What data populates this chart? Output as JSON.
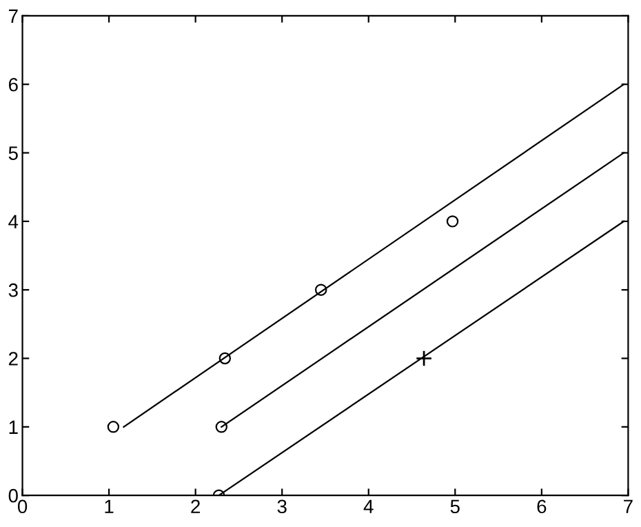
{
  "chart_data": {
    "type": "line",
    "xlim": [
      0,
      7
    ],
    "ylim": [
      0,
      7
    ],
    "xticks": [
      0,
      1,
      2,
      3,
      4,
      5,
      6,
      7
    ],
    "yticks": [
      0,
      1,
      2,
      3,
      4,
      5,
      6,
      7
    ],
    "grid": false,
    "legend": false,
    "series": [
      {
        "color": "#000000",
        "marker": "none",
        "line_style": "solid",
        "x": [
          1.17,
          6.95
        ],
        "values": [
          1,
          6
        ]
      },
      {
        "color": "#000000",
        "marker": "none",
        "line_style": "solid",
        "x": [
          2.3,
          6.95
        ],
        "values": [
          1,
          5
        ]
      },
      {
        "color": "#000000",
        "marker": "none",
        "line_style": "solid",
        "x": [
          2.27,
          6.95
        ],
        "values": [
          0,
          4
        ]
      },
      {
        "type": "scatter",
        "color": "#000000",
        "marker": "circle",
        "x": [
          1.05,
          2.34,
          3.45,
          4.97,
          2.3,
          2.27
        ],
        "values": [
          1,
          2,
          3,
          4,
          1,
          0
        ]
      },
      {
        "type": "scatter",
        "color": "#000000",
        "marker": "cross",
        "x": [
          4.64
        ],
        "values": [
          2
        ]
      }
    ]
  }
}
